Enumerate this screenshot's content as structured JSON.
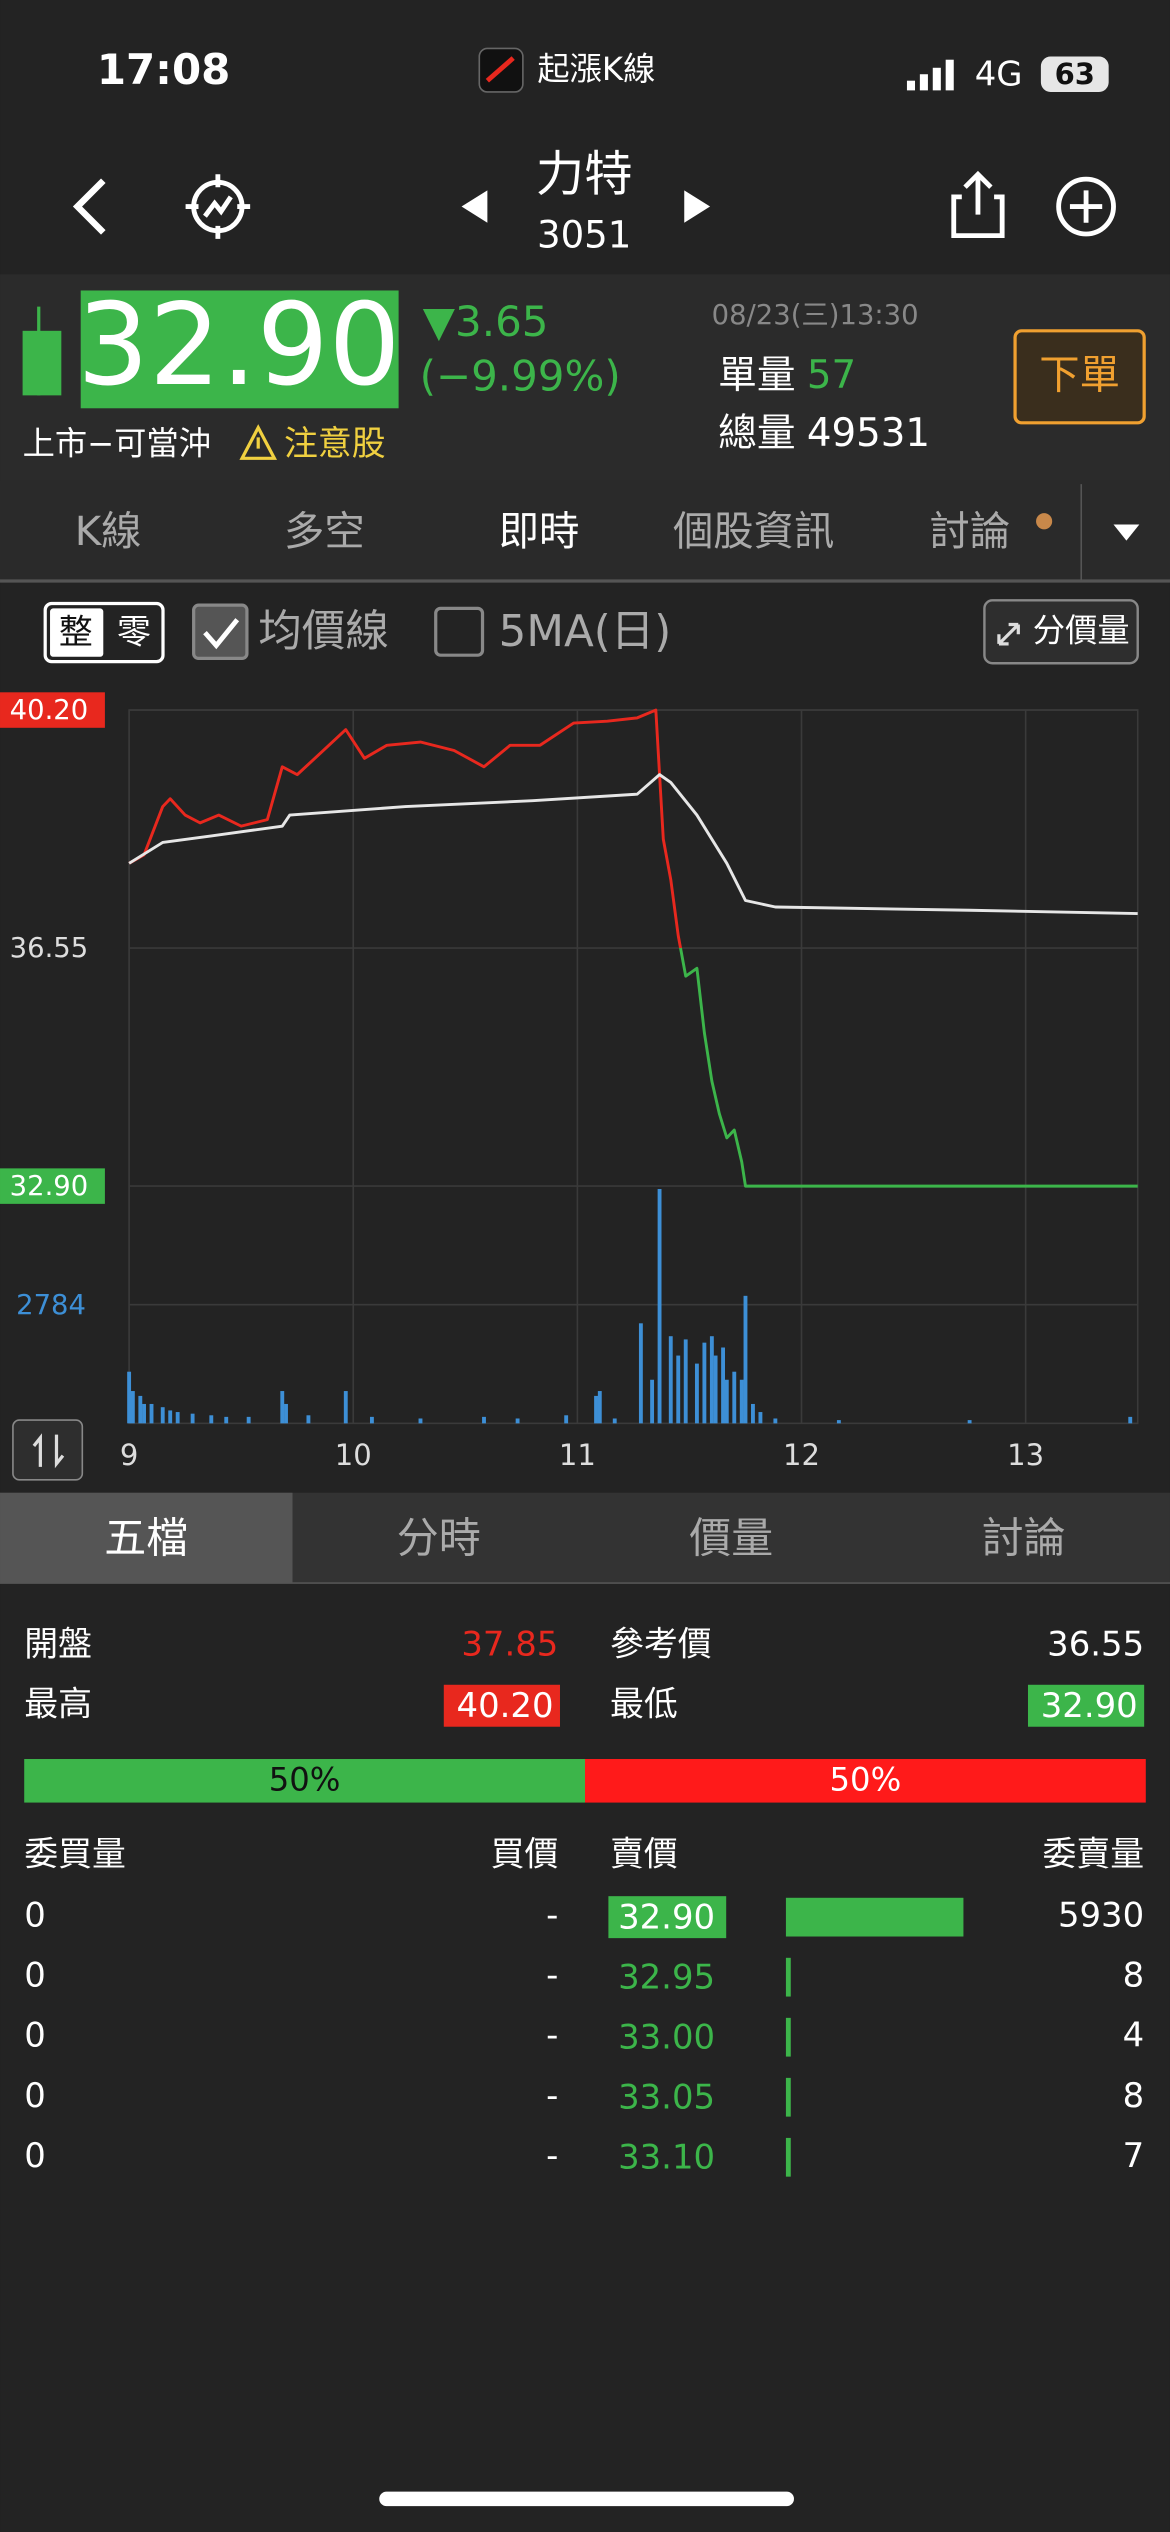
{
  "status_bar": {
    "time": "17:08",
    "app": "起漲K線",
    "network": "4G",
    "battery": "63"
  },
  "header": {
    "name": "力特",
    "code": "3051"
  },
  "quote": {
    "price": "32.90",
    "change": "▼3.65",
    "change_pct": "(−9.99%)",
    "datetime": "08/23(三)13:30",
    "unit_volume_label": "單量",
    "unit_volume": "57",
    "total_volume_label": "總量",
    "total_volume": "49531",
    "market": "上市−可當沖",
    "warning": "注意股",
    "order_button": "下單"
  },
  "tabs": {
    "items": [
      "K線",
      "多空",
      "即時",
      "個股資訊",
      "討論"
    ],
    "active": 2
  },
  "chart_options": {
    "lot_whole": "整",
    "lot_odd": "零",
    "avg_line_checked": true,
    "ma5": "5MA(日)",
    "ma5_checked": false,
    "price_volume_button": "分價量"
  },
  "chart_data": {
    "type": "line",
    "xlim": [
      0,
      270
    ],
    "xticks": [
      {
        "value": 0,
        "label": "9"
      },
      {
        "value": 60,
        "label": "10"
      },
      {
        "value": 120,
        "label": "11"
      },
      {
        "value": 180,
        "label": "12"
      },
      {
        "value": 240,
        "label": "13"
      }
    ],
    "ylim": [
      32.9,
      40.2
    ],
    "yticks": [
      {
        "value": 40.2,
        "label": "40.20"
      },
      36.55,
      {
        "value": 32.9,
        "label": "32.90"
      }
    ],
    "reference": 36.55,
    "up_color": "#e8281e",
    "down_color": "#3cb54a",
    "grid": true,
    "series": [
      {
        "color": "#e8281e",
        "x": [
          0,
          4,
          9,
          11,
          15,
          19,
          24,
          30,
          37,
          41,
          45,
          52,
          58,
          63,
          69,
          78,
          87,
          95,
          102,
          110,
          119,
          128,
          136,
          141,
          142,
          143,
          145,
          147,
          149,
          152,
          154,
          156,
          158,
          160,
          162,
          164,
          165,
          270
        ],
        "values": [
          37.85,
          37.98,
          38.72,
          38.84,
          38.59,
          38.47,
          38.59,
          38.42,
          38.52,
          39.33,
          39.21,
          39.58,
          39.9,
          39.46,
          39.66,
          39.71,
          39.58,
          39.33,
          39.66,
          39.66,
          40.0,
          40.03,
          40.08,
          40.2,
          39.21,
          38.22,
          37.6,
          36.74,
          36.12,
          36.24,
          35.25,
          34.51,
          34.01,
          33.64,
          33.76,
          33.27,
          32.9,
          32.9
        ]
      },
      {
        "name": "均價線",
        "color": "#e6e6e6",
        "x": [
          0,
          9,
          22,
          41,
          43,
          74,
          108,
          136,
          142,
          145,
          152,
          160,
          165,
          173,
          225,
          270
        ],
        "values": [
          37.85,
          38.17,
          38.27,
          38.42,
          38.59,
          38.72,
          38.81,
          38.91,
          39.21,
          39.09,
          38.59,
          37.85,
          37.28,
          37.18,
          37.13,
          37.08
        ]
      }
    ],
    "volume": {
      "color": "#3d8fd6",
      "ylim": [
        0,
        5568
      ],
      "yticks": [
        2784
      ],
      "x": [
        0,
        1,
        3,
        4,
        6,
        9,
        11,
        13,
        17,
        22,
        26,
        32,
        41,
        42,
        48,
        58,
        65,
        78,
        95,
        104,
        117,
        125,
        126,
        130,
        137,
        140,
        142,
        145,
        147,
        149,
        152,
        154,
        156,
        157,
        159,
        160,
        162,
        164,
        165,
        167,
        169,
        173,
        190,
        225,
        268
      ],
      "values": [
        1212,
        758,
        644,
        455,
        455,
        379,
        303,
        265,
        227,
        189,
        152,
        152,
        758,
        455,
        189,
        758,
        152,
        114,
        152,
        114,
        189,
        644,
        758,
        114,
        2348,
        1023,
        5500,
        2045,
        1591,
        1970,
        1402,
        1894,
        2045,
        1591,
        1780,
        1023,
        1212,
        1023,
        2993,
        455,
        265,
        114,
        76,
        76,
        152
      ]
    }
  },
  "bottom_tabs": {
    "items": [
      "五檔",
      "分時",
      "價量",
      "討論"
    ],
    "active": 0
  },
  "summary": {
    "open_label": "開盤",
    "open": "37.85",
    "ref_label": "參考價",
    "ref": "36.55",
    "high_label": "最高",
    "high": "40.20",
    "low_label": "最低",
    "low": "32.90"
  },
  "ratio": {
    "buy": {
      "value": 50,
      "label": "50%"
    },
    "sell": {
      "value": 50,
      "label": "50%"
    }
  },
  "order_book": {
    "headers": [
      "委買量",
      "買價",
      "賣價",
      "委賣量"
    ],
    "rows": [
      [
        0,
        "-",
        "32.90",
        5930
      ],
      [
        0,
        "-",
        "32.95",
        8
      ],
      [
        0,
        "-",
        "33.00",
        4
      ],
      [
        0,
        "-",
        "33.05",
        8
      ],
      [
        0,
        "-",
        "33.10",
        7
      ]
    ]
  }
}
